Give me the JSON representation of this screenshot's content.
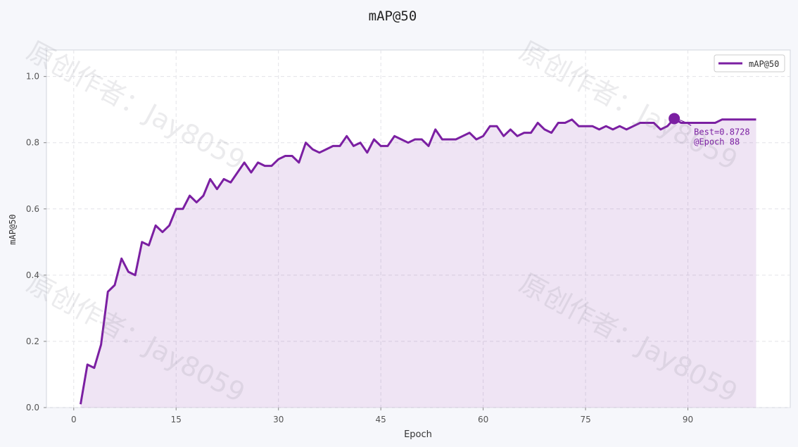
{
  "chart_data": {
    "type": "line",
    "title": "mAP@50",
    "xlabel": "Epoch",
    "ylabel": "mAP@50",
    "xlim": [
      -4,
      105
    ],
    "ylim": [
      0,
      1.08
    ],
    "xticks": [
      0,
      15,
      30,
      45,
      60,
      75,
      90
    ],
    "yticks": [
      0.0,
      0.2,
      0.4,
      0.6,
      0.8,
      1.0
    ],
    "xtick_labels": [
      "0",
      "15",
      "30",
      "45",
      "60",
      "75",
      "90"
    ],
    "ytick_labels": [
      "0.0",
      "0.2",
      "0.4",
      "0.6",
      "0.8",
      "1.0"
    ],
    "grid": true,
    "legend": "top-right",
    "series": [
      {
        "name": "mAP@50",
        "color": "#7b1fa2",
        "fill_color": "#7b1fa2",
        "x": [
          1,
          2,
          3,
          4,
          5,
          6,
          7,
          8,
          9,
          10,
          11,
          12,
          13,
          14,
          15,
          16,
          17,
          18,
          19,
          20,
          21,
          22,
          23,
          24,
          25,
          26,
          27,
          28,
          29,
          30,
          31,
          32,
          33,
          34,
          35,
          36,
          37,
          38,
          39,
          40,
          41,
          42,
          43,
          44,
          45,
          46,
          47,
          48,
          49,
          50,
          51,
          52,
          53,
          54,
          55,
          56,
          57,
          58,
          59,
          60,
          61,
          62,
          63,
          64,
          65,
          66,
          67,
          68,
          69,
          70,
          71,
          72,
          73,
          74,
          75,
          76,
          77,
          78,
          79,
          80,
          81,
          82,
          83,
          84,
          85,
          86,
          87,
          88,
          89,
          90,
          91,
          92,
          93,
          94,
          95,
          96,
          97,
          98,
          99,
          100
        ],
        "y": [
          0.01,
          0.13,
          0.12,
          0.19,
          0.35,
          0.37,
          0.45,
          0.41,
          0.4,
          0.5,
          0.49,
          0.55,
          0.53,
          0.55,
          0.6,
          0.6,
          0.64,
          0.62,
          0.64,
          0.69,
          0.66,
          0.69,
          0.68,
          0.71,
          0.74,
          0.71,
          0.74,
          0.73,
          0.73,
          0.75,
          0.76,
          0.76,
          0.74,
          0.8,
          0.78,
          0.77,
          0.78,
          0.79,
          0.79,
          0.82,
          0.79,
          0.8,
          0.77,
          0.81,
          0.79,
          0.79,
          0.82,
          0.81,
          0.8,
          0.81,
          0.81,
          0.79,
          0.84,
          0.81,
          0.81,
          0.81,
          0.82,
          0.83,
          0.81,
          0.82,
          0.85,
          0.85,
          0.82,
          0.84,
          0.82,
          0.83,
          0.83,
          0.86,
          0.84,
          0.83,
          0.86,
          0.86,
          0.87,
          0.85,
          0.85,
          0.85,
          0.84,
          0.85,
          0.84,
          0.85,
          0.84,
          0.85,
          0.86,
          0.86,
          0.86,
          0.84,
          0.85,
          0.8728,
          0.86,
          0.86,
          0.86,
          0.86,
          0.86,
          0.86,
          0.87,
          0.87,
          0.87,
          0.87,
          0.87,
          0.87
        ]
      }
    ],
    "annotations": [
      {
        "x": 88,
        "y": 0.8728,
        "lines": [
          "Best=0.8728",
          "@Epoch 88"
        ]
      }
    ]
  },
  "watermarks": [
    "原创作者：Jay8059",
    "原创作者：Jay8059",
    "原创作者：Jay8059",
    "原创作者：Jay8059"
  ]
}
